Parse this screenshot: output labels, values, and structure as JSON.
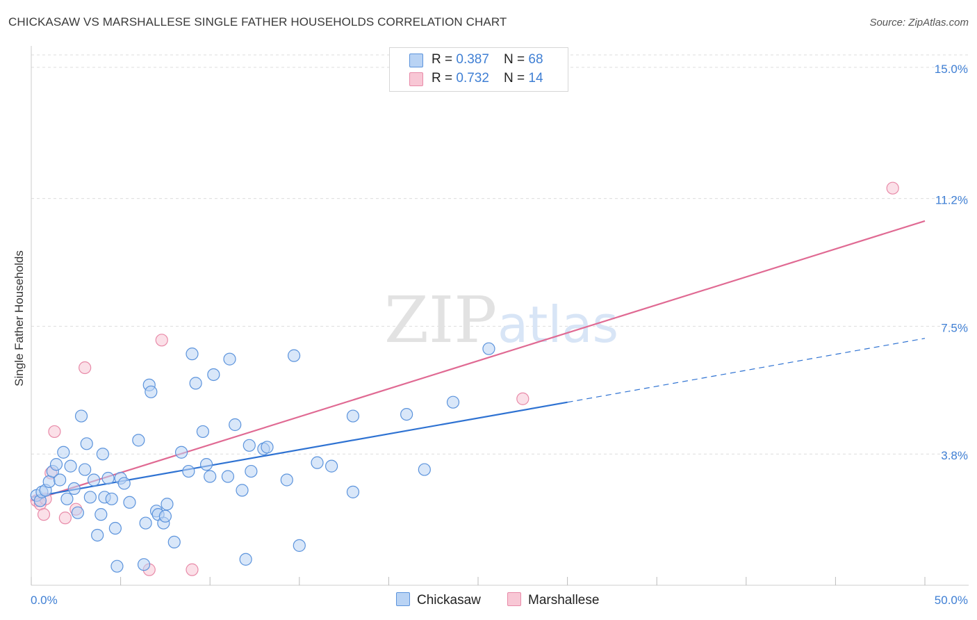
{
  "title": "CHICKASAW VS MARSHALLESE SINGLE FATHER HOUSEHOLDS CORRELATION CHART",
  "source": "Source: ZipAtlas.com",
  "watermark": {
    "zip": "ZIP",
    "atlas": "atlas"
  },
  "colors": {
    "chickasaw_fill": "#b9d3f4",
    "chickasaw_stroke": "#5b93dc",
    "chickasaw_line": "#2e72d2",
    "marshallese_fill": "#f8c7d5",
    "marshallese_stroke": "#e88aa8",
    "marshallese_line": "#e06a93",
    "tick_text": "#3f7fd4",
    "grid": "#dddddd"
  },
  "legend": {
    "rows": [
      {
        "r_label": "R = ",
        "r_value": "0.387",
        "n_label": "N = ",
        "n_value": "68"
      },
      {
        "r_label": "R = ",
        "r_value": "0.732",
        "n_label": "N = ",
        "n_value": "14"
      }
    ]
  },
  "chart_data": {
    "type": "scatter",
    "title": "CHICKASAW VS MARSHALLESE SINGLE FATHER HOUSEHOLDS CORRELATION CHART",
    "xlabel": "",
    "ylabel": "Single Father Households",
    "xlim": [
      0,
      50
    ],
    "ylim": [
      0,
      15.5
    ],
    "x_tick_labels": [
      "0.0%",
      "50.0%"
    ],
    "y_ticks": [
      3.8,
      7.5,
      11.2,
      15.0
    ],
    "y_tick_labels": [
      "3.8%",
      "7.5%",
      "11.2%",
      "15.0%"
    ],
    "legend_position": "top-center",
    "series": [
      {
        "name": "Chickasaw",
        "r": 0.387,
        "n": 68,
        "trend": {
          "x0": 0,
          "y0": 2.55,
          "x1": 30,
          "y1": 5.3,
          "dash_x1": 50,
          "dash_y1": 7.15
        },
        "points": [
          [
            0.3,
            2.6
          ],
          [
            0.5,
            2.45
          ],
          [
            0.6,
            2.7
          ],
          [
            0.8,
            2.75
          ],
          [
            1.0,
            3.0
          ],
          [
            1.2,
            3.3
          ],
          [
            1.4,
            3.5
          ],
          [
            1.6,
            3.05
          ],
          [
            1.8,
            3.85
          ],
          [
            2.0,
            2.5
          ],
          [
            2.2,
            3.45
          ],
          [
            2.4,
            2.8
          ],
          [
            2.6,
            2.1
          ],
          [
            2.8,
            4.9
          ],
          [
            3.0,
            3.35
          ],
          [
            3.1,
            4.1
          ],
          [
            3.3,
            2.55
          ],
          [
            3.5,
            3.05
          ],
          [
            3.7,
            1.45
          ],
          [
            3.9,
            2.05
          ],
          [
            4.0,
            3.8
          ],
          [
            4.1,
            2.55
          ],
          [
            4.3,
            3.1
          ],
          [
            4.5,
            2.5
          ],
          [
            4.7,
            1.65
          ],
          [
            4.8,
            0.55
          ],
          [
            5.0,
            3.1
          ],
          [
            5.2,
            2.95
          ],
          [
            5.5,
            2.4
          ],
          [
            6.0,
            4.2
          ],
          [
            6.3,
            0.6
          ],
          [
            6.4,
            1.8
          ],
          [
            6.6,
            5.8
          ],
          [
            6.7,
            5.6
          ],
          [
            7.0,
            2.15
          ],
          [
            7.1,
            2.05
          ],
          [
            7.4,
            1.8
          ],
          [
            7.5,
            2.0
          ],
          [
            7.6,
            2.35
          ],
          [
            8.0,
            1.25
          ],
          [
            8.4,
            3.85
          ],
          [
            8.8,
            3.3
          ],
          [
            9.0,
            6.7
          ],
          [
            9.2,
            5.85
          ],
          [
            9.6,
            4.45
          ],
          [
            9.8,
            3.5
          ],
          [
            10.0,
            3.15
          ],
          [
            10.2,
            6.1
          ],
          [
            11.0,
            3.15
          ],
          [
            11.1,
            6.55
          ],
          [
            11.4,
            4.65
          ],
          [
            11.8,
            2.75
          ],
          [
            12.0,
            0.75
          ],
          [
            12.2,
            4.05
          ],
          [
            12.3,
            3.3
          ],
          [
            13.0,
            3.95
          ],
          [
            13.2,
            4.0
          ],
          [
            14.3,
            3.05
          ],
          [
            14.7,
            6.65
          ],
          [
            15.0,
            1.15
          ],
          [
            16.0,
            3.55
          ],
          [
            16.8,
            3.45
          ],
          [
            18.0,
            2.7
          ],
          [
            18.0,
            4.9
          ],
          [
            21.0,
            4.95
          ],
          [
            22.0,
            3.35
          ],
          [
            23.6,
            5.3
          ],
          [
            25.6,
            6.85
          ]
        ]
      },
      {
        "name": "Marshallese",
        "r": 0.732,
        "n": 14,
        "trend": {
          "x0": 0,
          "y0": 2.45,
          "x1": 50,
          "y1": 10.55
        },
        "points": [
          [
            0.3,
            2.45
          ],
          [
            0.5,
            2.35
          ],
          [
            0.7,
            2.05
          ],
          [
            0.8,
            2.5
          ],
          [
            1.1,
            3.25
          ],
          [
            1.3,
            4.45
          ],
          [
            1.9,
            1.95
          ],
          [
            2.5,
            2.2
          ],
          [
            3.0,
            6.3
          ],
          [
            6.6,
            0.45
          ],
          [
            7.3,
            7.1
          ],
          [
            9.0,
            0.45
          ],
          [
            27.5,
            5.4
          ],
          [
            48.2,
            11.5
          ]
        ]
      }
    ]
  }
}
